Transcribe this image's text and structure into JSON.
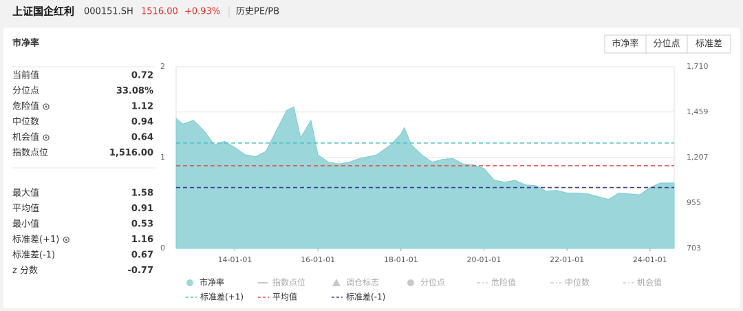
{
  "header": {
    "title": "上证国企红利",
    "code": "000151.SH",
    "price": "1516.00",
    "change": "+0.93%",
    "tab": "历史PE/PB"
  },
  "panel": {
    "title": "市净率",
    "buttons": [
      "市净率",
      "分位点",
      "标准差"
    ]
  },
  "stats": {
    "group1": [
      {
        "label": "当前值",
        "value": "0.72",
        "gear": false
      },
      {
        "label": "分位点",
        "value": "33.08%",
        "gear": false
      },
      {
        "label": "危险值",
        "value": "1.12",
        "gear": true
      },
      {
        "label": "中位数",
        "value": "0.94",
        "gear": false
      },
      {
        "label": "机会值",
        "value": "0.64",
        "gear": true
      },
      {
        "label": "指数点位",
        "value": "1,516.00",
        "gear": false
      }
    ],
    "group2": [
      {
        "label": "最大值",
        "value": "1.58",
        "gear": false
      },
      {
        "label": "平均值",
        "value": "0.91",
        "gear": false
      },
      {
        "label": "最小值",
        "value": "0.53",
        "gear": false
      },
      {
        "label": "标准差(+1)",
        "value": "1.16",
        "gear": true
      },
      {
        "label": "标准差(-1)",
        "value": "0.67",
        "gear": false
      },
      {
        "label": "z 分数",
        "value": "-0.77",
        "gear": false
      }
    ]
  },
  "chart_data": {
    "type": "area",
    "x": [
      "12-08-01",
      "12-10-01",
      "13-01-01",
      "13-04-01",
      "13-07-01",
      "13-10-01",
      "14-01-01",
      "14-04-01",
      "14-07-01",
      "14-10-01",
      "15-01-01",
      "15-04-01",
      "15-06-01",
      "15-08-01",
      "15-11-01",
      "16-01-01",
      "16-04-01",
      "16-07-01",
      "16-10-01",
      "17-01-01",
      "17-06-01",
      "17-10-01",
      "18-01-01",
      "18-02-01",
      "18-04-01",
      "18-07-01",
      "18-10-01",
      "19-01-01",
      "19-04-01",
      "19-07-01",
      "19-10-01",
      "20-01-01",
      "20-04-01",
      "20-07-01",
      "20-10-01",
      "21-01-01",
      "21-04-01",
      "21-07-01",
      "21-10-01",
      "22-01-01",
      "22-04-01",
      "22-07-01",
      "22-10-01",
      "23-01-01",
      "23-04-01",
      "23-07-01",
      "23-10-01",
      "24-01-01",
      "24-04-01",
      "24-08-01"
    ],
    "series": [
      {
        "name": "市净率",
        "color": "#9ad6da",
        "values": [
          1.43,
          1.37,
          1.41,
          1.3,
          1.14,
          1.18,
          1.11,
          1.03,
          1.01,
          1.07,
          1.3,
          1.52,
          1.56,
          1.22,
          1.41,
          1.03,
          0.95,
          0.93,
          0.95,
          0.99,
          1.03,
          1.14,
          1.26,
          1.33,
          1.14,
          1.03,
          0.95,
          0.98,
          0.99,
          0.93,
          0.92,
          0.88,
          0.75,
          0.73,
          0.75,
          0.7,
          0.69,
          0.63,
          0.64,
          0.61,
          0.61,
          0.6,
          0.57,
          0.54,
          0.61,
          0.6,
          0.59,
          0.67,
          0.72,
          0.72
        ]
      }
    ],
    "ref_lines": [
      {
        "name": "标准差(+1)",
        "value": 1.16,
        "color": "#4bbfc6"
      },
      {
        "name": "平均值",
        "value": 0.91,
        "color": "#e0504a"
      },
      {
        "name": "标准差(-1)",
        "value": 0.67,
        "color": "#3c3f8f"
      }
    ],
    "inactive_legend": [
      {
        "name": "指数点位",
        "marker": "line"
      },
      {
        "name": "调仓标志",
        "marker": "triangle"
      },
      {
        "name": "分位点",
        "marker": "circle"
      },
      {
        "name": "危险值",
        "marker": "dashdot"
      },
      {
        "name": "中位数",
        "marker": "dashdot"
      },
      {
        "name": "机会值",
        "marker": "dashdot"
      }
    ],
    "xlim": [
      "12-08-01",
      "24-08-01"
    ],
    "xticks": [
      "14-01-01",
      "16-01-01",
      "18-01-01",
      "20-01-01",
      "22-01-01",
      "24-01-01"
    ],
    "ylim": [
      0,
      2
    ],
    "yticks": [
      0,
      1,
      2
    ],
    "y2lim": [
      703,
      1710
    ],
    "y2ticks": [
      {
        "value": 1710,
        "label": "1,710"
      },
      {
        "value": 1459,
        "label": "1,459"
      },
      {
        "value": 1207,
        "label": "1,207"
      },
      955,
      703
    ],
    "grid": true
  }
}
